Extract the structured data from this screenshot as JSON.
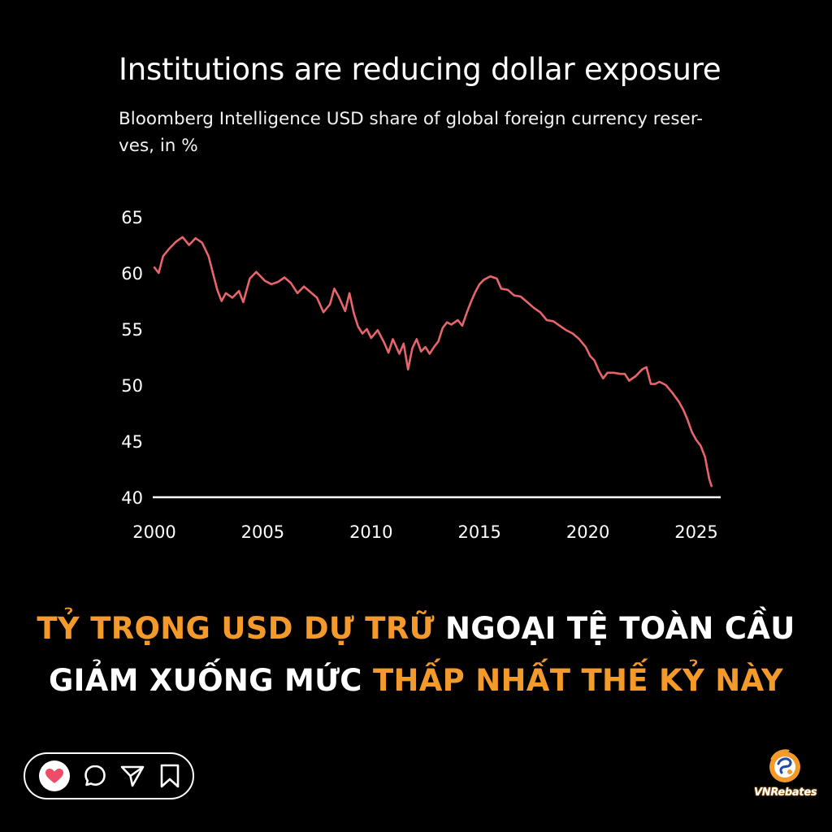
{
  "chart_data": {
    "type": "line",
    "title": "Institutions are reducing dollar exposure",
    "subtitle": "Bloomberg Intelligence USD share of global foreign currency reser-ves, in %",
    "subtitle_lines": [
      "Bloomberg Intelligence USD share of global foreign currency reser-",
      "ves, in %"
    ],
    "xlabel": "",
    "ylabel": "",
    "xlim": [
      2000,
      2025.8
    ],
    "ylim": [
      40,
      65
    ],
    "xticks": [
      2000,
      2005,
      2010,
      2015,
      2020,
      2025
    ],
    "yticks": [
      40,
      45,
      50,
      55,
      60,
      65
    ],
    "grid": false,
    "line_color": "#e8646b",
    "series": [
      {
        "x": [
          2000.0,
          2000.2,
          2000.4,
          2000.7,
          2001.0,
          2001.3,
          2001.6,
          2001.9,
          2002.2,
          2002.5,
          2002.7,
          2002.9,
          2003.1,
          2003.3,
          2003.6,
          2003.9,
          2004.1,
          2004.4,
          2004.7,
          2004.9,
          2005.1,
          2005.4,
          2005.7,
          2006.0,
          2006.3,
          2006.6,
          2006.9,
          2007.2,
          2007.5,
          2007.8,
          2008.1,
          2008.3,
          2008.5,
          2008.8,
          2009.0,
          2009.2,
          2009.4,
          2009.6,
          2009.8,
          2010.0,
          2010.3,
          2010.6,
          2010.8,
          2011.0,
          2011.3,
          2011.5,
          2011.7,
          2011.9,
          2012.1,
          2012.3,
          2012.5,
          2012.7,
          2012.9,
          2013.1,
          2013.3,
          2013.5,
          2013.7,
          2014.0,
          2014.2,
          2014.4,
          2014.6,
          2014.8,
          2015.0,
          2015.2,
          2015.5,
          2015.8,
          2016.0,
          2016.3,
          2016.6,
          2016.9,
          2017.2,
          2017.5,
          2017.8,
          2018.1,
          2018.4,
          2018.7,
          2019.0,
          2019.3,
          2019.6,
          2019.9,
          2020.1,
          2020.3,
          2020.5,
          2020.7,
          2020.9,
          2021.2,
          2021.5,
          2021.7,
          2021.9,
          2022.2,
          2022.5,
          2022.7,
          2022.9,
          2023.1,
          2023.3,
          2023.6,
          2023.9,
          2024.2,
          2024.4,
          2024.6,
          2024.8,
          2025.0,
          2025.2,
          2025.4,
          2025.5,
          2025.6,
          2025.7
        ],
        "y": [
          60.5,
          60.0,
          61.5,
          62.2,
          62.8,
          63.2,
          62.5,
          63.1,
          62.7,
          61.5,
          60.0,
          58.5,
          57.5,
          58.2,
          57.8,
          58.4,
          57.4,
          59.5,
          60.1,
          59.7,
          59.3,
          59.0,
          59.2,
          59.6,
          59.1,
          58.2,
          58.8,
          58.3,
          57.8,
          56.5,
          57.2,
          58.6,
          57.9,
          56.6,
          58.2,
          56.4,
          55.2,
          54.6,
          55.0,
          54.2,
          54.9,
          53.8,
          52.9,
          54.1,
          52.8,
          53.7,
          51.4,
          53.3,
          54.1,
          53.0,
          53.4,
          52.8,
          53.4,
          53.9,
          55.1,
          55.6,
          55.4,
          55.8,
          55.3,
          56.4,
          57.4,
          58.3,
          59.0,
          59.4,
          59.7,
          59.5,
          58.6,
          58.5,
          58.0,
          57.9,
          57.4,
          56.9,
          56.5,
          55.8,
          55.7,
          55.3,
          54.9,
          54.6,
          54.1,
          53.4,
          52.6,
          52.2,
          51.3,
          50.6,
          51.1,
          51.1,
          51.0,
          51.0,
          50.4,
          50.8,
          51.4,
          51.6,
          50.1,
          50.1,
          50.3,
          50.0,
          49.3,
          48.5,
          47.8,
          46.9,
          45.8,
          45.1,
          44.6,
          43.6,
          42.6,
          41.6,
          41.0
        ]
      }
    ]
  },
  "headline": {
    "line1_highlight": "TỶ TRỌNG USD DỰ TRỮ",
    "line1_rest": " NGOẠI TỆ TOÀN CẦU",
    "line2_rest": "GIẢM XUỐNG MỨC ",
    "line2_highlight": "THẤP NHẤT THẾ KỶ NÀY",
    "highlight_color": "#f39a2b"
  },
  "action_bar": {
    "icons": [
      "heart-icon",
      "comment-icon",
      "share-icon",
      "bookmark-icon"
    ]
  },
  "logo": {
    "text": "VNRebates",
    "icon": "vnrebates-logo-icon"
  }
}
